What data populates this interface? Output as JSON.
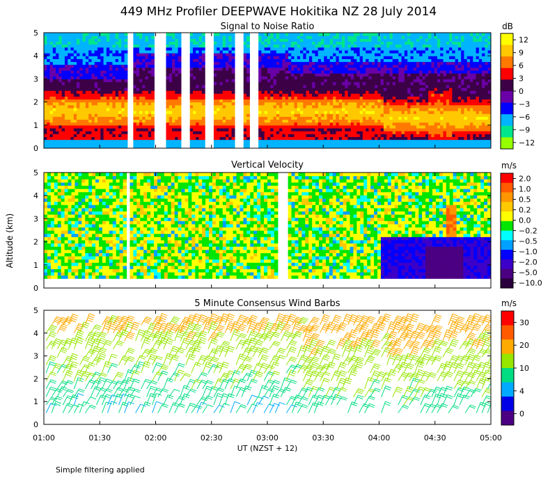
{
  "figure": {
    "title": "449 MHz Profiler DEEPWAVE Hokitika NZ 28 July 2014",
    "ylabel": "Altitude (km)",
    "xlabel": "UT  (NZST + 12)",
    "footnote": "Simple filtering applied",
    "background": "#ffffff"
  },
  "chart_data": [
    {
      "type": "heatmap",
      "title": "Signal to Noise Ratio",
      "units": "dB",
      "x_ticks": [
        "01:00",
        "01:30",
        "02:00",
        "02:30",
        "03:00",
        "03:30",
        "04:00",
        "04:30",
        "05:00"
      ],
      "xlim_hours_ut": [
        1.0,
        5.0
      ],
      "y_ticks": [
        "0",
        "1",
        "2",
        "3",
        "4",
        "5"
      ],
      "ylim_km": [
        0,
        5
      ],
      "colorbar_labels": [
        "12",
        "9",
        "6",
        "3",
        "0",
        "−3",
        "−6",
        "−9",
        "−12"
      ],
      "colorbar_colors": [
        "#ffff00",
        "#ffc800",
        "#ff7800",
        "#ff0000",
        "#3c0046",
        "#6a00a8",
        "#0000ff",
        "#00b4ff",
        "#00e68c",
        "#96ff00"
      ],
      "data_gaps_hours_ut": [
        [
          1.75,
          1.79
        ],
        [
          2.0,
          2.08
        ],
        [
          2.24,
          2.32
        ],
        [
          2.45,
          2.53
        ],
        [
          2.7,
          2.78
        ],
        [
          2.84,
          2.91
        ]
      ]
    },
    {
      "type": "heatmap",
      "title": "Vertical Velocity",
      "units": "m/s",
      "x_ticks": [
        "01:00",
        "01:30",
        "02:00",
        "02:30",
        "03:00",
        "03:30",
        "04:00",
        "04:30",
        "05:00"
      ],
      "xlim_hours_ut": [
        1.0,
        5.0
      ],
      "y_ticks": [
        "0",
        "1",
        "2",
        "3",
        "4",
        "5"
      ],
      "ylim_km": [
        0,
        5
      ],
      "colorbar_labels": [
        "2.0",
        "1.0",
        "0.5",
        "0.2",
        "0.0",
        "−0.2",
        "−0.5",
        "−1.0",
        "−2.0",
        "−5.0",
        "−10.0"
      ],
      "colorbar_colors": [
        "#ff0000",
        "#ff5a00",
        "#ff9600",
        "#ffc800",
        "#ffff00",
        "#00e600",
        "#00ffff",
        "#00a0ff",
        "#0000ff",
        "#3c00c8",
        "#4b0082",
        "#2a003c"
      ]
    },
    {
      "type": "wind_barbs",
      "title": "5 Minute Consensus Wind Barbs",
      "units": "m/s",
      "x_ticks": [
        "01:00",
        "01:30",
        "02:00",
        "02:30",
        "03:00",
        "03:30",
        "04:00",
        "04:30",
        "05:00"
      ],
      "xlim_hours_ut": [
        1.0,
        5.0
      ],
      "y_ticks": [
        "0",
        "1",
        "2",
        "3",
        "4",
        "5"
      ],
      "ylim_km": [
        0,
        5
      ],
      "colorbar_labels": [
        "30",
        "20",
        "10",
        "4",
        "0"
      ],
      "colorbar_colors": [
        "#ff0000",
        "#ff5a00",
        "#ffaa00",
        "#96e600",
        "#00dc82",
        "#00aaff",
        "#0000e6",
        "#4b0082"
      ]
    }
  ]
}
